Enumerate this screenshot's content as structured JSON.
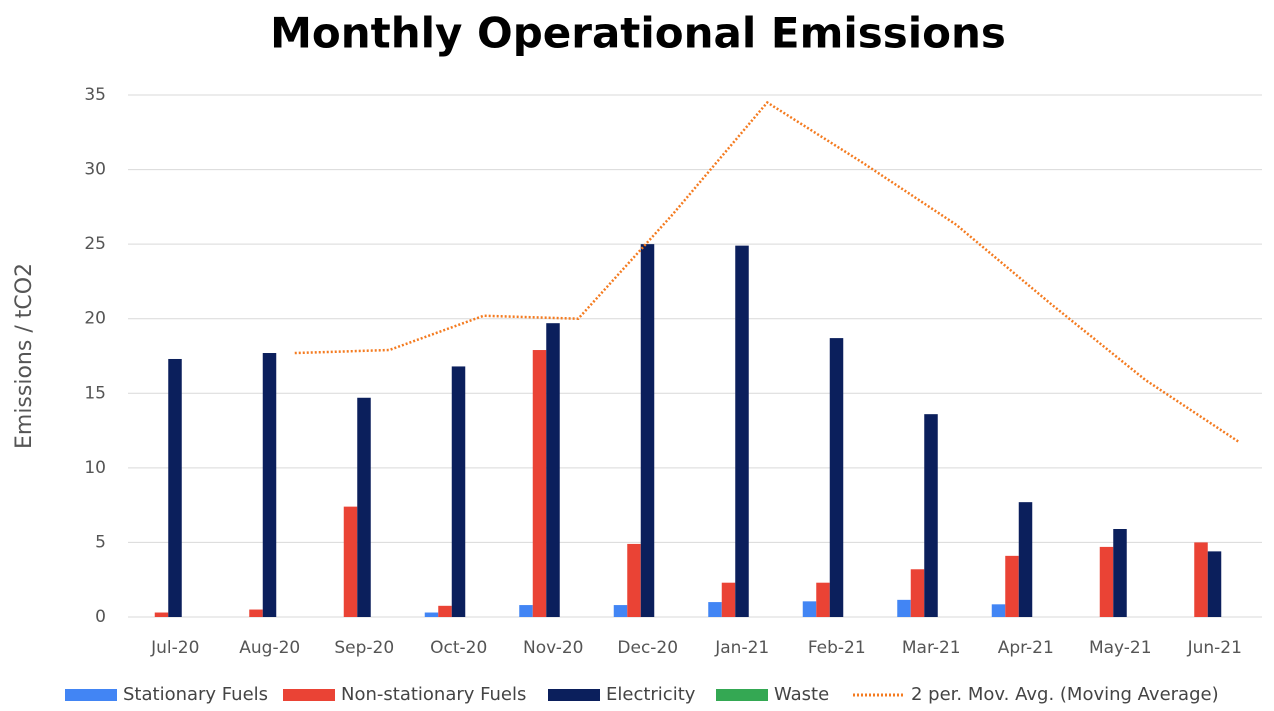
{
  "chart_data": {
    "type": "bar",
    "title": "Monthly Operational Emissions",
    "y_label": "Emissions / tCO2",
    "categories": [
      "Jul-20",
      "Aug-20",
      "Sep-20",
      "Oct-20",
      "Nov-20",
      "Dec-20",
      "Jan-21",
      "Feb-21",
      "Mar-21",
      "Apr-21",
      "May-21",
      "Jun-21"
    ],
    "series": [
      {
        "name": "Stationary Fuels",
        "color": "#4285f4",
        "values": [
          0,
          0,
          0,
          0.3,
          0.8,
          0.8,
          1.0,
          1.05,
          1.15,
          0.85,
          0,
          0
        ]
      },
      {
        "name": "Non-stationary Fuels",
        "color": "#ea4335",
        "values": [
          0.3,
          0.5,
          7.4,
          0.75,
          17.9,
          4.9,
          2.3,
          2.3,
          3.2,
          4.1,
          4.7,
          5.0
        ]
      },
      {
        "name": "Electricity",
        "color": "#0b1f5c",
        "values": [
          17.3,
          17.7,
          14.7,
          16.8,
          19.7,
          25.0,
          24.9,
          18.7,
          13.6,
          7.7,
          5.9,
          4.4
        ]
      },
      {
        "name": "Waste",
        "color": "#34a853",
        "values": [
          0,
          0,
          0,
          0,
          0,
          0,
          0,
          0,
          0,
          0,
          0,
          0
        ]
      },
      {
        "name": "2 per. Mov. Avg. (Moving Average)",
        "color": "#f47b20",
        "type": "line",
        "style": "dotted",
        "values": [
          null,
          17.7,
          17.9,
          20.2,
          20.0,
          27.0,
          34.5,
          30.5,
          26.3,
          21.0,
          15.9,
          11.7
        ]
      }
    ],
    "ylim": [
      0,
      35
    ],
    "yticks": [
      0,
      5,
      10,
      15,
      20,
      25,
      30,
      35
    ],
    "grid": true,
    "legend": "bottom"
  }
}
